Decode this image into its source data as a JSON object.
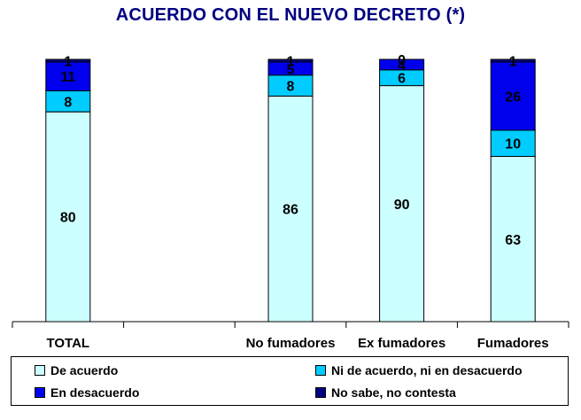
{
  "title_main": "ACUERDO CON EL NUEVO DECRETO",
  "title_mark": "(*)",
  "chart_data": {
    "type": "bar",
    "stacked": true,
    "categories": [
      "TOTAL",
      "",
      "No fumadores",
      "Ex fumadores",
      "Fumadores"
    ],
    "ylim": [
      0,
      100
    ],
    "grid": false,
    "legend_position": "bottom",
    "series": [
      {
        "name": "De acuerdo",
        "color": "#ccffff",
        "values": [
          80,
          null,
          86,
          90,
          63
        ]
      },
      {
        "name": "Ni de acuerdo, ni en desacuerdo",
        "color": "#00ccff",
        "values": [
          8,
          null,
          8,
          6,
          10
        ]
      },
      {
        "name": "En desacuerdo",
        "color": "#0000ee",
        "values": [
          11,
          null,
          5,
          4,
          26
        ]
      },
      {
        "name": "No sabe, no contesta",
        "color": "#000080",
        "values": [
          1,
          null,
          1,
          0,
          1
        ]
      }
    ]
  }
}
